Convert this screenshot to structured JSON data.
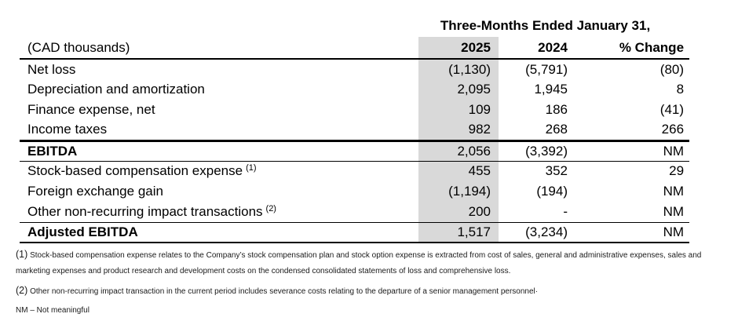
{
  "table": {
    "period_header": "Three-Months Ended January 31,",
    "units_label": "(CAD thousands)",
    "columns": {
      "y2025": "2025",
      "y2024": "2024",
      "change": "% Change"
    },
    "highlight_color": "#d9d9d9",
    "rows": [
      {
        "label": "Net loss",
        "sup": "",
        "y2025": "(1,130)",
        "y2024": "(5,791)",
        "change": "(80)"
      },
      {
        "label": "Depreciation and amortization",
        "sup": "",
        "y2025": "2,095",
        "y2024": "1,945",
        "change": "8"
      },
      {
        "label": "Finance expense, net",
        "sup": "",
        "y2025": "109",
        "y2024": "186",
        "change": "(41)"
      },
      {
        "label": "Income taxes",
        "sup": "",
        "y2025": "982",
        "y2024": "268",
        "change": "266"
      },
      {
        "label": "EBITDA",
        "sup": "",
        "y2025": "2,056",
        "y2024": "(3,392)",
        "change": "NM"
      },
      {
        "label": "Stock-based compensation expense",
        "sup": "(1)",
        "y2025": "455",
        "y2024": "352",
        "change": "29"
      },
      {
        "label": "Foreign exchange gain",
        "sup": "",
        "y2025": "(1,194)",
        "y2024": "(194)",
        "change": "NM"
      },
      {
        "label": "Other non-recurring impact transactions",
        "sup": "(2)",
        "y2025": "200",
        "y2024": "-",
        "change": "NM"
      },
      {
        "label": "Adjusted EBITDA",
        "sup": "",
        "y2025": "1,517",
        "y2024": "(3,234)",
        "change": "NM"
      }
    ]
  },
  "footnotes": {
    "items": [
      {
        "marker": "(1)",
        "text": "Stock-based compensation expense relates to the Company’s stock compensation plan and stock option expense is extracted from cost of sales, general and administrative expenses, sales and marketing expenses and product research and development costs on the condensed consolidated statements of loss and comprehensive loss."
      },
      {
        "marker": "(2)",
        "text": "Other non-recurring impact transaction in the current period includes severance costs relating to the departure of a senior management personnel·"
      }
    ],
    "nm": "NM – Not meaningful"
  }
}
